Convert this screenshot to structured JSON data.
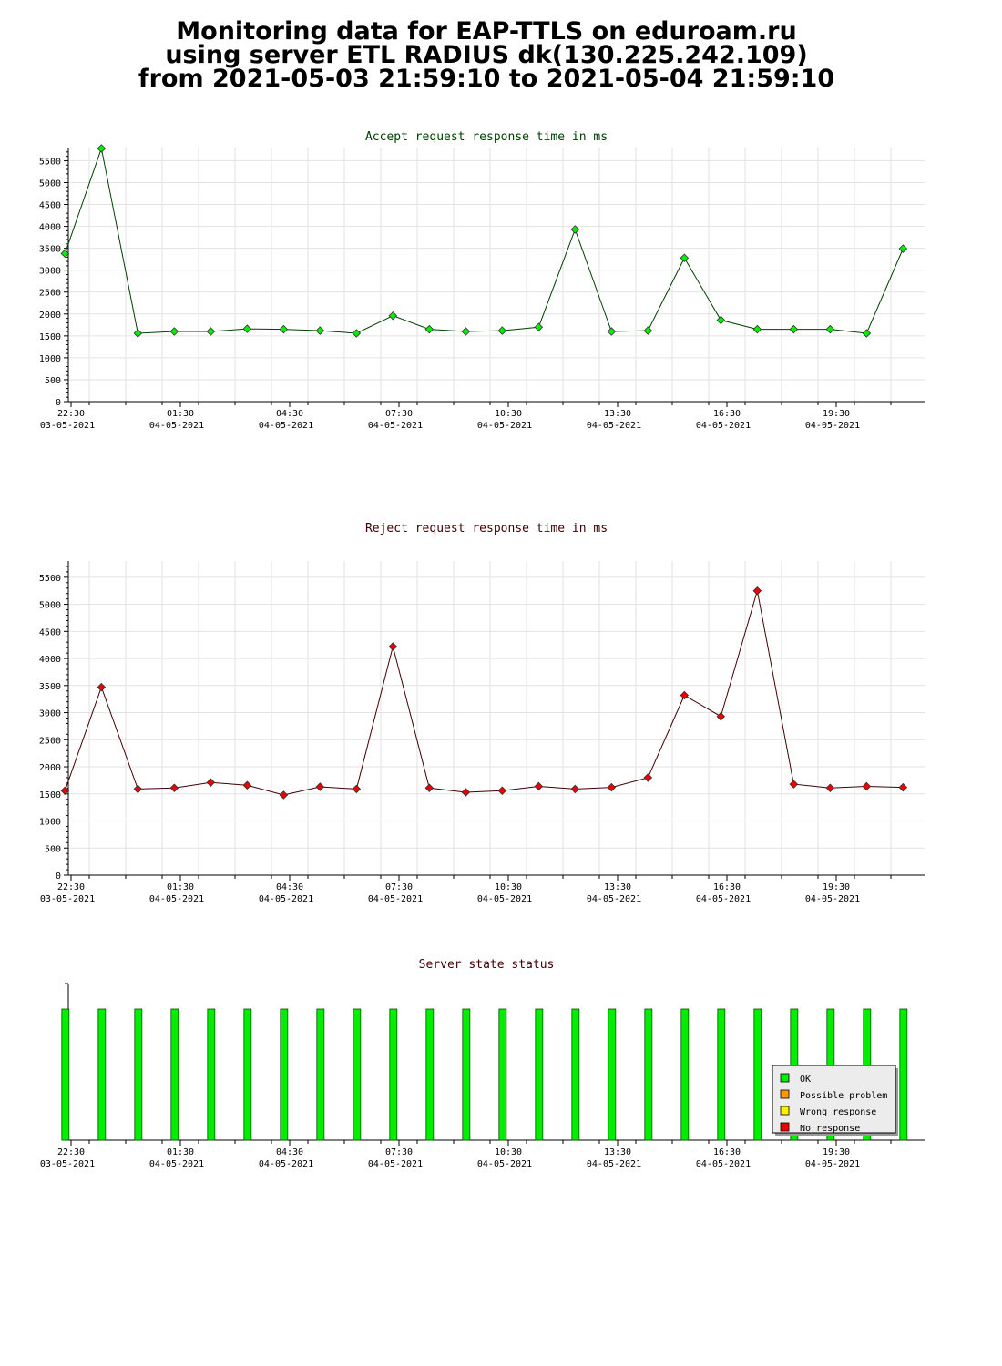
{
  "header": {
    "line1": "Monitoring data for EAP-TTLS on eduroam.ru",
    "line2": "using server ETL RADIUS dk(130.225.242.109)",
    "line3": "from 2021-05-03 21:59:10 to 2021-05-04 21:59:10"
  },
  "x_ticks": [
    {
      "time": "22:30",
      "date": "03-05-2021"
    },
    {
      "time": "01:30",
      "date": "04-05-2021"
    },
    {
      "time": "04:30",
      "date": "04-05-2021"
    },
    {
      "time": "07:30",
      "date": "04-05-2021"
    },
    {
      "time": "10:30",
      "date": "04-05-2021"
    },
    {
      "time": "13:30",
      "date": "04-05-2021"
    },
    {
      "time": "16:30",
      "date": "04-05-2021"
    },
    {
      "time": "19:30",
      "date": "04-05-2021"
    }
  ],
  "chart_data": [
    {
      "type": "line",
      "title": "Accept request response time in ms",
      "title_color": "#004000",
      "line_color": "#004000",
      "marker_color": "#00ee00",
      "ylim": [
        0,
        5800
      ],
      "yticks": [
        0,
        500,
        1000,
        1500,
        2000,
        2500,
        3000,
        3500,
        4000,
        4500,
        5000,
        5500
      ],
      "grid": true,
      "x_axis": "time, 22:00 03-05-2021 to 22:00 04-05-2021",
      "x": [
        "22:20",
        "23:20",
        "00:20",
        "01:20",
        "02:20",
        "03:20",
        "04:20",
        "05:20",
        "06:20",
        "07:20",
        "08:20",
        "09:20",
        "10:20",
        "11:20",
        "12:20",
        "13:20",
        "14:20",
        "15:20",
        "16:20",
        "17:20",
        "18:20",
        "19:20",
        "20:20",
        "21:20"
      ],
      "series": [
        {
          "values": [
            3380,
            5780,
            1560,
            1600,
            1600,
            1660,
            1650,
            1620,
            1560,
            1960,
            1650,
            1600,
            1620,
            1700,
            3930,
            1600,
            1620,
            3280,
            1860,
            1650,
            1650,
            1650,
            1560,
            3490
          ]
        }
      ]
    },
    {
      "type": "line",
      "title": "Reject request response time in ms",
      "title_color": "#400000",
      "line_color": "#400000",
      "marker_color": "#ee0000",
      "ylim": [
        0,
        5800
      ],
      "yticks": [
        0,
        500,
        1000,
        1500,
        2000,
        2500,
        3000,
        3500,
        4000,
        4500,
        5000,
        5500
      ],
      "grid": true,
      "x_axis": "time, 22:00 03-05-2021 to 22:00 04-05-2021",
      "x": [
        "22:20",
        "23:20",
        "00:20",
        "01:20",
        "02:20",
        "03:20",
        "04:20",
        "05:20",
        "06:20",
        "07:20",
        "08:20",
        "09:20",
        "10:20",
        "11:20",
        "12:20",
        "13:20",
        "14:20",
        "15:20",
        "16:20",
        "17:20",
        "18:20",
        "19:20",
        "20:20",
        "21:20"
      ],
      "series": [
        {
          "values": [
            1560,
            3470,
            1590,
            1610,
            1710,
            1660,
            1480,
            1630,
            1590,
            4220,
            1610,
            1530,
            1560,
            1640,
            1590,
            1620,
            1800,
            3320,
            2930,
            5250,
            1680,
            1610,
            1640,
            1620
          ]
        }
      ]
    },
    {
      "type": "bar",
      "title": "Server state status",
      "title_color": "#400000",
      "x": [
        "22:20",
        "23:20",
        "00:20",
        "01:20",
        "02:20",
        "03:20",
        "04:20",
        "05:20",
        "06:20",
        "07:20",
        "08:20",
        "09:20",
        "10:20",
        "11:20",
        "12:20",
        "13:20",
        "14:20",
        "15:20",
        "16:20",
        "17:20",
        "18:20",
        "19:20",
        "20:20",
        "21:20"
      ],
      "states": [
        "OK",
        "OK",
        "OK",
        "OK",
        "OK",
        "OK",
        "OK",
        "OK",
        "OK",
        "OK",
        "OK",
        "OK",
        "OK",
        "OK",
        "OK",
        "OK",
        "OK",
        "OK",
        "OK",
        "OK",
        "OK",
        "OK",
        "OK",
        "OK"
      ],
      "legend_position": "bottom-right",
      "legend": [
        {
          "label": "OK",
          "color": "#00ee00"
        },
        {
          "label": "Possible problem",
          "color": "#ff9900"
        },
        {
          "label": "Wrong response",
          "color": "#ffee00"
        },
        {
          "label": "No response",
          "color": "#ee0000"
        }
      ]
    }
  ]
}
